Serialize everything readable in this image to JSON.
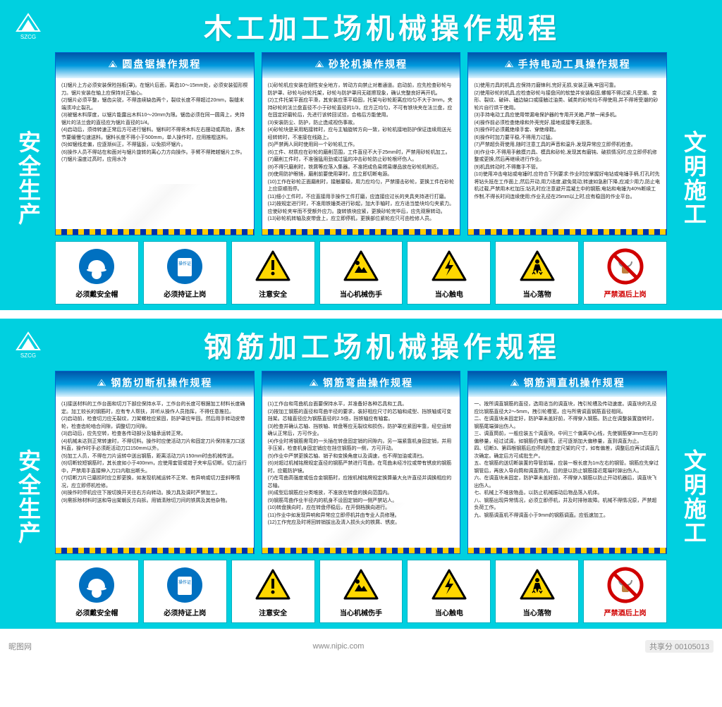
{
  "colors": {
    "board_bg": "#00d0e0",
    "title_text": "#ffffff",
    "panel_head_top": "#0055aa",
    "panel_head_mid": "#0099dd",
    "stripe_yellow": "#ffcc00",
    "stripe_blue": "#0033aa",
    "mandatory_blue": "#0070c0",
    "warning_yellow": "#ffd700",
    "warning_border": "#000000",
    "prohibit_red": "#d00000"
  },
  "logo_text": "SZCG",
  "boards": [
    {
      "title": "木工加工场机械操作规程",
      "left_text": "安全生产",
      "right_text": "文明施工",
      "panels": [
        {
          "title": "圆盘锯操作规程",
          "body": "(1)锯片上方必须安装保险挡板(罩)。在锯片后面，离齿10～15mm处，必须安装弧形楔刀。锯片安装在轴上应保持对正轴心。\n(2)锯片必须平整，锯齿尖锐，不得连续缺齿两个，裂纹长度不得超过20mm，裂缝末端须冲止裂孔。\n(3)被锯木料厚度，以锯片能露出木料10～20mm为限。锯齿必须在同一圆周上，夹持锯片的法兰盘的直径应为锯片直径的1/4。\n(4)启动后，须待转速正常后方可进行锯料。锯料时不得将木料左右摆动或高抬，遇木节要缓慢匀速送料。锯料长度不得小于500mm，单人操作时，应用推棍送料。\n(5)如锯线走偏，应逐渐纠正，不得猛扳，以免损坏锯片。\n(6)操作人员不得站在和面对与锯片旋转的离心力方向操作。手臂不得跨越锯片工作。\n(7)锯片温度过高时，应用水冷"
        },
        {
          "title": "砂轮机操作规程",
          "body": "(1)砂轮机应安装在刚性安全地方，转动方向禁止对着通道。启动前，应先检查砂轮与防护罩、砂轮与砂轮托架，砂轮与防护罩间无碰擦现象，确认完整良好再开机。\n(2)工件托架平面应平滑，其安装应率平稳固，托架与砂轮距离应均匀不大于3mm，夹持砂轮的法兰盘直径不小于砂轮直径的1/3，应方正均匀，不可有铁块夹在法兰盘，应在固定好磨轮后，先进行该转回试验，合格后方能使用。\n(3)安装防尘、防护，防止造成视伤事故。\n(4)砂轮块是采用粘接转时，应与主轴旋转方向一致，砂轮机接地防护保证连续用送光经转转时，不准接在线路上。\n(5)严禁两人同时使用同一个砂轮机工作。\n(6)工件、材质应在砂轮的磨削范围，工件直径不大于25mm时，严禁用砂轮机加工。\n(7)磨削工件时，不准强猛用劲或过猛的冲击砂轮防止砂轮根坏伤人。\n(8)不得只磨削时，铁屑等应落入集器。不准把成色易燃易爆品放在砂轮机附近。\n(9)使用防护眼镜，磨削前要使用罩时，应立即切断电源。\n(10)工作在砂轮正面磨削时，接触要稳，用力应均匀，严禁撞击砂轮，更换工件在砂轮上应原顺而停。\n(11)细小工件时，不应直接用手操作工件打磨，应连接应过长的夹具夹持进行打磨。\n(12)按规定进行时，不准用铁锤类进行砂起，加大手轴时，应方适当垫块均匀夹紧力。应使砂轮夹牢而不受额外应力。旋转铁块应紧，更换砂轮完毕后，应先观察转动。\n(13)砂轮机转轴及皮带盘上，应立即停机，更换部位紧轮应只可由检修人员。"
        },
        {
          "title": "手持电动工具操作规程",
          "body": "(1)使用刃具的机具,应保持刃磨锋利,完好无损,安装正确,牢固可靠。\n(2)使用砂轮的机具,应检查砂轮与接盘间的软垫并安装稳固,螺帽不得过紧;凡受潮、变形、裂纹、破碎、磕边缺口或接触过油类、碱类的砂轮均不得使用,并不得将受潮的砂轮片自行烘干使用。\n(3)手持电动工具应使用带漏电保护器的专用开关箱,严禁一闸多机。\n(4)操作前必须检查绝缘和外壳完好,接地或接零无脱落。\n(5)操作时必须戴绝缘手套、穿绝缘鞋。\n(6)操作时加力要平稳,不得用力过猛。\n(7)严禁超负荷使用,随时注意工具的声音和温升,发现异常应立即停机检查。\n(8)作业中,不得用手触摸刃具、模具和砂轮,发现其有磨钝、破损情况时,应立即停机修整或更换,然后再继续进行作业。\n(9)机具转动时,不得撒手不管。\n(10)使用冲击电钻或电锤时,应符合下列要求:作业时应掌握好电钻或电锤手柄,打孔时先将钻头抵在工作面上,然后开动,用力适度,避免晃动;转速如急剧下降,应减少用力,防止电机过载,严禁用木杠加压;钻孔时应注意避开混凝土中的钢筋;电钻和电锤为40%断续工作制,不得长时间连续使用;作业孔径在25mm以上时,应有稳固的作业平台。"
        }
      ],
      "icons": [
        {
          "type": "mandatory",
          "glyph": "helmet",
          "label": "必须戴安全帽"
        },
        {
          "type": "mandatory",
          "glyph": "card",
          "label": "必须持证上岗"
        },
        {
          "type": "warning",
          "glyph": "exclaim",
          "label": "注意安全"
        },
        {
          "type": "warning",
          "glyph": "hand",
          "label": "当心机械伤手"
        },
        {
          "type": "warning",
          "glyph": "bolt",
          "label": "当心触电"
        },
        {
          "type": "warning",
          "glyph": "falling",
          "label": "当心落物"
        },
        {
          "type": "prohibit",
          "glyph": "drink",
          "label": "严禁酒后上岗",
          "label_red": true
        }
      ]
    },
    {
      "title": "钢筋加工场机械操作规程",
      "left_text": "安全生产",
      "right_text": "文明施工",
      "panels": [
        {
          "title": "钢筋切断机操作规程",
          "body": "(1)接送材料的工作台面和切刀下部应保持水平，工作台的长度可根据加工材料长度确定。加工较长的钢筋时，应有专人帮扶，并听从操作人员指挥，不得任意推拉。\n(2)启动前，检查切刀应无裂纹，刀架螺栓应紧固，防护罩应牢固。然后用手转动皮带轮，检查齿轮啮合间隙，调整切刀间隙。\n(3)启动后，应先空转，检查各传动部分及轴承运转正常。\n(4)机械未达到正常转速时，不得切料。操作时应使活动刀片和固定刀片保持准刀口送料直，操作时手必须距活动刀口150mm以外。\n(5)加工人员，不得在刀片运转中送出钢筋，距离活动刀片150mm时由机械传送。\n(6)切断较短钢筋时，其长度如小于400mm，应使用套管或钳子夹牢后切断。切刀运行中，严禁用手直接伸入刀口内取出断头。\n(7)切断刀片已磨损时应立即更换，如发现机械运转不正常、有异响或切刀歪斜等情况，应立即停机检修。\n(8)操作时停机应往下按切换开关往右方向转动。换刀具及调时严禁加工。\n(9)需拆除材料时送和导出架朝反方向拆。用销清除切刀间的铁屑及其他杂物。"
        },
        {
          "title": "钢筋弯曲操作规程",
          "body": "(1)工作台和弯曲机台面要保持水平，并准备好各种芯具和工具。\n(2)按加工钢筋的直径和弯曲半径的要求，装好相应尺寸的芯轴和成型、挡铁轴或可变挡架。芯轴直径应为钢筋直径的2.5倍，挡铁轴应有轴套。\n(3)检查并确认芯轴、挡铁轴、转盘等应无裂纹和损伤，防护罩应紧固牢靠，经空运转确认正常后，方可作业。\n(4)作业时将钢筋需弯的一头插在转盘固定销的间隙内，另一端紧靠机身固定销，并用手压紧，检查机身固定销应在挡住钢筋的一侧，方可开动。\n(5)作业中严禁更换芯轴、销子和变换角度以及调速，也不得加油或清扫。\n(6)对超过机械铭牌规定直径的钢筋严禁进行弯曲，在弯曲未经冷拉或带有锈皮的钢筋时，应戴防护镜。\n(7)在弯曲高强度或低合金钢筋时，应按机械铭牌规定换算最大允许直径并调换相应的芯轴。\n(8)成型后钢筋应分类堆放，不准放在转盘的换向范围内。\n(9)钢筋弯曲作业半径内的机身不设固定销的一侧严禁站人。\n(10)转盘换向时，应在转盘停稳后，在开倒档换向进行。\n(11)作业中如发现异响和异常应立即停机并由专业人员修理。\n(12)工作完应及时将回转销拔出及清入损头火的铁屑、锈皮。"
        },
        {
          "title": "钢筋调直机操作规程",
          "body": "一、按所调直钢筋的直径，选用适当的调直块，拽引轮槽及传动速度。调直块的孔径应比钢筋直径大2～5mm，拽引轮槽宽，应与所需调直钢筋直径相同。\n二、在调直块未固定好，防护罩未盖好前，不得穿入钢筋。防止在调整装置旋转时，钢筋尾端弹出伤人。\n三、调直筒前，一般应装五个调直块。中间三个偏离中心线，先使钢筋穿3mm左右的偏移量，经过试调，如钢筋仍有缓弯，还可逐渐加大偏移量，直到调直为止。\n四、切断3、第四根钢筋后应停机检查定尺架的尺寸，如有偏差，调整后应再试调直几次确定。确定后方可成批生产。\n五、在钢筋的送切断装置的导管前端，应装一根长度为1m左右的钢管。钢筋应先穿过钢管后，再放入导向筒和调直筒内。目的是以防止钢筋接近尾端时弹出伤人。\n六、在调直块未固定，防护罩未盖好前，不得穿入钢筋以防止开动机器后，调直块飞出伤人。\n七、机械上不堆放物品，以防止机械振动后物品落入机体。\n八、钢筋出现异常情况，必须立即停机，并及时排除故障。机械不得情况原，严禁超负荷工作。\n九、钢筋调直机不得调直小于9mm的钢筋调直。应低速加工。"
        }
      ],
      "icons": [
        {
          "type": "mandatory",
          "glyph": "helmet",
          "label": "必须戴安全帽"
        },
        {
          "type": "mandatory",
          "glyph": "card",
          "label": "必须持证上岗"
        },
        {
          "type": "warning",
          "glyph": "exclaim",
          "label": "注意安全"
        },
        {
          "type": "warning",
          "glyph": "hand",
          "label": "当心机械伤手"
        },
        {
          "type": "warning",
          "glyph": "bolt",
          "label": "当心触电"
        },
        {
          "type": "warning",
          "glyph": "falling",
          "label": "当心落物"
        },
        {
          "type": "prohibit",
          "glyph": "drink",
          "label": "严禁酒后上岗",
          "label_red": true
        }
      ]
    }
  ],
  "footer": {
    "site": "昵图网",
    "url": "www.nipic.com",
    "id": "共享分 00105013"
  }
}
